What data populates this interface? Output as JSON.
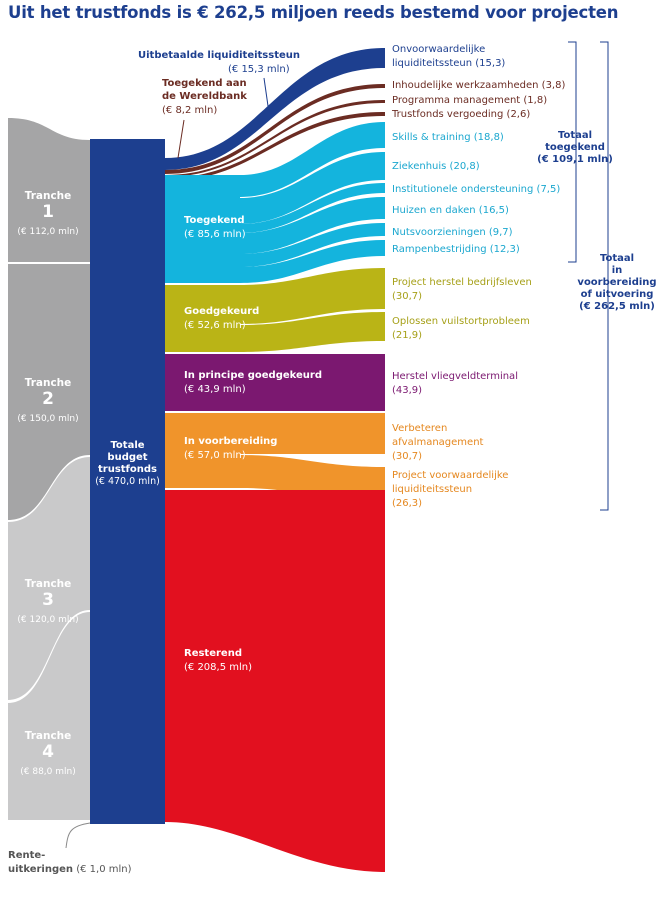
{
  "title": "Uit het trustfonds is € 262,5 miljoen reeds bestemd voor projecten",
  "colors": {
    "navy": "#1d3f8f",
    "brown": "#6b2c23",
    "cyan": "#14b4dd",
    "olive": "#bab416",
    "purple": "#7b1870",
    "orange": "#f0942b",
    "red": "#e2101f",
    "tranche_dark": "#a5a5a6",
    "tranche_light": "#c9c9ca"
  },
  "tranches": [
    {
      "label": "Tranche",
      "number": "1",
      "amount": "(€ 112,0 mln)"
    },
    {
      "label": "Tranche",
      "number": "2",
      "amount": "(€ 150,0 mln)"
    },
    {
      "label": "Tranche",
      "number": "3",
      "amount": "(€ 120,0 mln)"
    },
    {
      "label": "Tranche",
      "number": "4",
      "amount": "(€ 88,0 mln)"
    }
  ],
  "rente": {
    "label": "Rente-",
    "label2": "uitkeringen",
    "amount": "(€ 1,0 mln)"
  },
  "total": {
    "line1": "Totale",
    "line2": "budget",
    "line3": "trustfonds",
    "amount": "(€ 470,0 mln)"
  },
  "top_flows": {
    "liquiditeit": {
      "label": "Uitbetaalde liquiditeitssteun",
      "amount": "(€ 15,3 mln)"
    },
    "wereldbank": {
      "label": "Toegekend aan",
      "label2": "de Wereldbank",
      "amount": "(€ 8,2 mln)"
    }
  },
  "categories": {
    "toegekend": {
      "label": "Toegekend",
      "amount": "(€ 85,6 mln)"
    },
    "goedgekeurd": {
      "label": "Goedgekeurd",
      "amount": "(€ 52,6 mln)"
    },
    "in_principe": {
      "label": "In principe goedgekeurd",
      "amount": "(€ 43,9 mln)"
    },
    "voorbereiding": {
      "label": "In voorbereiding",
      "amount": "(€ 57,0 mln)"
    },
    "resterend": {
      "label": "Resterend",
      "amount": "(€ 208,5 mln)"
    }
  },
  "projects": {
    "onvoorwaardelijke": {
      "line1": "Onvoorwaardelijke",
      "line2": "liquiditeitssteun (15,3)"
    },
    "inhoudelijk": "Inhoudelijke werkzaamheden (3,8)",
    "programma": "Programma management (1,8)",
    "vergoeding": "Trustfonds vergoeding (2,6)",
    "skills": "Skills & training (18,8)",
    "ziekenhuis": "Ziekenhuis (20,8)",
    "institutioneel": "Institutionele ondersteuning (7,5)",
    "huizen": "Huizen en daken (16,5)",
    "nuts": "Nutsvoorzieningen (9,7)",
    "rampen": "Rampenbestrijding (12,3)",
    "bedrijfsleven": {
      "line1": "Project herstel bedrijfsleven",
      "line2": "(30,7)"
    },
    "vuilstort": {
      "line1": "Oplossen vuilstortprobleem",
      "line2": "(21,9)"
    },
    "vliegveld": {
      "line1": "Herstel vliegveldterminal",
      "line2": "(43,9)"
    },
    "afval": {
      "line1": "Verbeteren",
      "line2": "afvalmanagement",
      "line3": "(30,7)"
    },
    "voorwaardelijk": {
      "line1": "Project voorwaardelijke",
      "line2": "liquiditeitssteun",
      "line3": "(26,3)"
    }
  },
  "totals": {
    "toegekend": {
      "line1": "Totaal",
      "line2": "toegekend",
      "amount": "(€ 109,1 mln)"
    },
    "voorbereiding": {
      "line1": "Totaal",
      "line2": "in",
      "line3": "voorbereiding",
      "line4": "of uitvoering",
      "amount": "(€ 262,5 mln)"
    }
  }
}
